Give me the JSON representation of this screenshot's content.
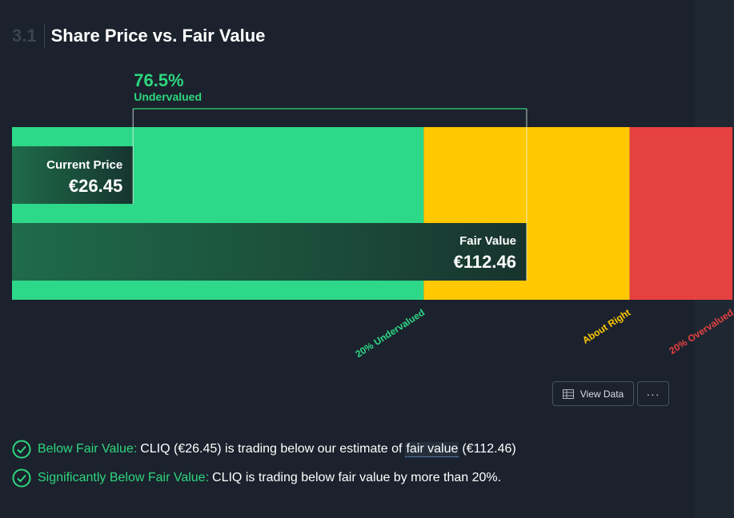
{
  "header": {
    "section_number": "3.1",
    "title": "Share Price vs. Fair Value"
  },
  "chart_data": {
    "type": "bar",
    "currency_symbol": "€",
    "current_price": 26.45,
    "fair_value": 112.46,
    "current_price_label": "Current Price",
    "current_price_text": "€26.45",
    "fair_value_label": "Fair Value",
    "fair_value_text": "€112.46",
    "discount_text": "76.5%",
    "discount_label": "Undervalued",
    "zones": [
      {
        "label": "20% Undervalued",
        "color": "#2ed889",
        "label_color": "#2ed889",
        "from_ratio": 0.0,
        "to_ratio": 0.8
      },
      {
        "label": "About Right",
        "color": "#ffc800",
        "label_color": "#ffc800",
        "from_ratio": 0.8,
        "to_ratio": 1.2
      },
      {
        "label": "20% Overvalued",
        "color": "#e64141",
        "label_color": "#e64141",
        "from_ratio": 1.2,
        "to_ratio": 1.4
      }
    ],
    "xlim": [
      0,
      143.6
    ]
  },
  "actions": {
    "view_data_label": "View Data",
    "more_label": "···"
  },
  "checks": [
    {
      "highlight": "Below Fair Value:",
      "text_before": "CLIQ (€26.45) is trading below our estimate of",
      "link": "fair value",
      "text_after": "(€112.46)"
    },
    {
      "highlight": "Significantly Below Fair Value:",
      "text_before": "CLIQ is trading below fair value by more than 20%.",
      "link": "",
      "text_after": ""
    }
  ],
  "colors": {
    "accent_green": "#2ed67d",
    "background": "#1b222d"
  }
}
